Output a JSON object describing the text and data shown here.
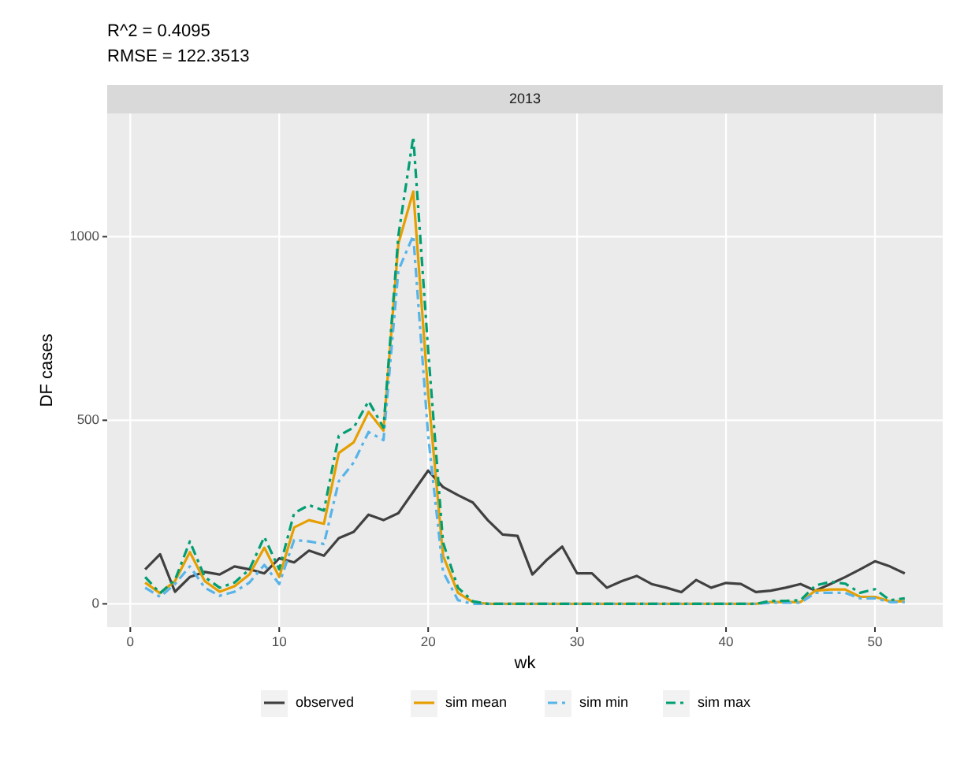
{
  "chart_data": {
    "type": "line",
    "title": "2013",
    "annotations": [
      "R^2 = 0.4095",
      "RMSE = 122.3513"
    ],
    "xlabel": "wk",
    "ylabel": "DF cases",
    "x": [
      1,
      2,
      3,
      4,
      5,
      6,
      7,
      8,
      9,
      10,
      11,
      12,
      13,
      14,
      15,
      16,
      17,
      18,
      19,
      20,
      21,
      22,
      23,
      24,
      25,
      26,
      27,
      28,
      29,
      30,
      31,
      32,
      33,
      34,
      35,
      36,
      37,
      38,
      39,
      40,
      41,
      42,
      43,
      44,
      45,
      46,
      47,
      48,
      49,
      50,
      51,
      52
    ],
    "series": [
      {
        "name": "observed",
        "color": "#404040",
        "line_style": "solid",
        "values": [
          94,
          135,
          33,
          73,
          87,
          80,
          102,
          94,
          83,
          124,
          113,
          145,
          131,
          179,
          196,
          243,
          228,
          247,
          305,
          363,
          318,
          296,
          276,
          228,
          189,
          185,
          80,
          121,
          156,
          83,
          83,
          44,
          62,
          76,
          54,
          44,
          32,
          65,
          44,
          57,
          54,
          32,
          36,
          44,
          54,
          36,
          54,
          73,
          94,
          116,
          102,
          83
        ]
      },
      {
        "name": "sim mean",
        "color": "#e69f00",
        "line_style": "solid",
        "values": [
          58,
          29,
          62,
          141,
          62,
          33,
          48,
          80,
          153,
          73,
          208,
          228,
          218,
          411,
          440,
          523,
          472,
          981,
          1123,
          574,
          131,
          30,
          5,
          0,
          0,
          0,
          0,
          0,
          0,
          0,
          0,
          0,
          0,
          0,
          0,
          0,
          0,
          0,
          0,
          0,
          0,
          0,
          5,
          5,
          5,
          36,
          39,
          39,
          19,
          19,
          7,
          7
        ]
      },
      {
        "name": "sim min",
        "color": "#56b4e9",
        "line_style": "dashed",
        "values": [
          44,
          19,
          54,
          102,
          44,
          22,
          33,
          58,
          106,
          54,
          174,
          170,
          163,
          334,
          385,
          468,
          446,
          908,
          1003,
          458,
          87,
          10,
          0,
          0,
          0,
          0,
          0,
          0,
          0,
          0,
          0,
          0,
          0,
          0,
          0,
          0,
          0,
          0,
          0,
          0,
          0,
          0,
          3,
          3,
          3,
          30,
          30,
          30,
          15,
          15,
          5,
          5
        ]
      },
      {
        "name": "sim max",
        "color": "#009e73",
        "line_style": "dashed",
        "values": [
          73,
          29,
          65,
          170,
          73,
          44,
          58,
          94,
          182,
          94,
          247,
          269,
          254,
          458,
          480,
          552,
          480,
          1003,
          1272,
          690,
          167,
          44,
          7,
          0,
          0,
          0,
          0,
          0,
          0,
          0,
          0,
          0,
          0,
          0,
          0,
          0,
          0,
          0,
          0,
          0,
          0,
          0,
          8,
          8,
          10,
          50,
          60,
          55,
          30,
          40,
          10,
          15
        ]
      }
    ],
    "xlim": [
      -1.55,
      54.55
    ],
    "ylim": [
      -63.6,
      1335.6
    ],
    "xticks": [
      0,
      10,
      20,
      30,
      40,
      50
    ],
    "yticks": [
      0,
      500,
      1000
    ],
    "grid": true,
    "legend": "bottom"
  }
}
